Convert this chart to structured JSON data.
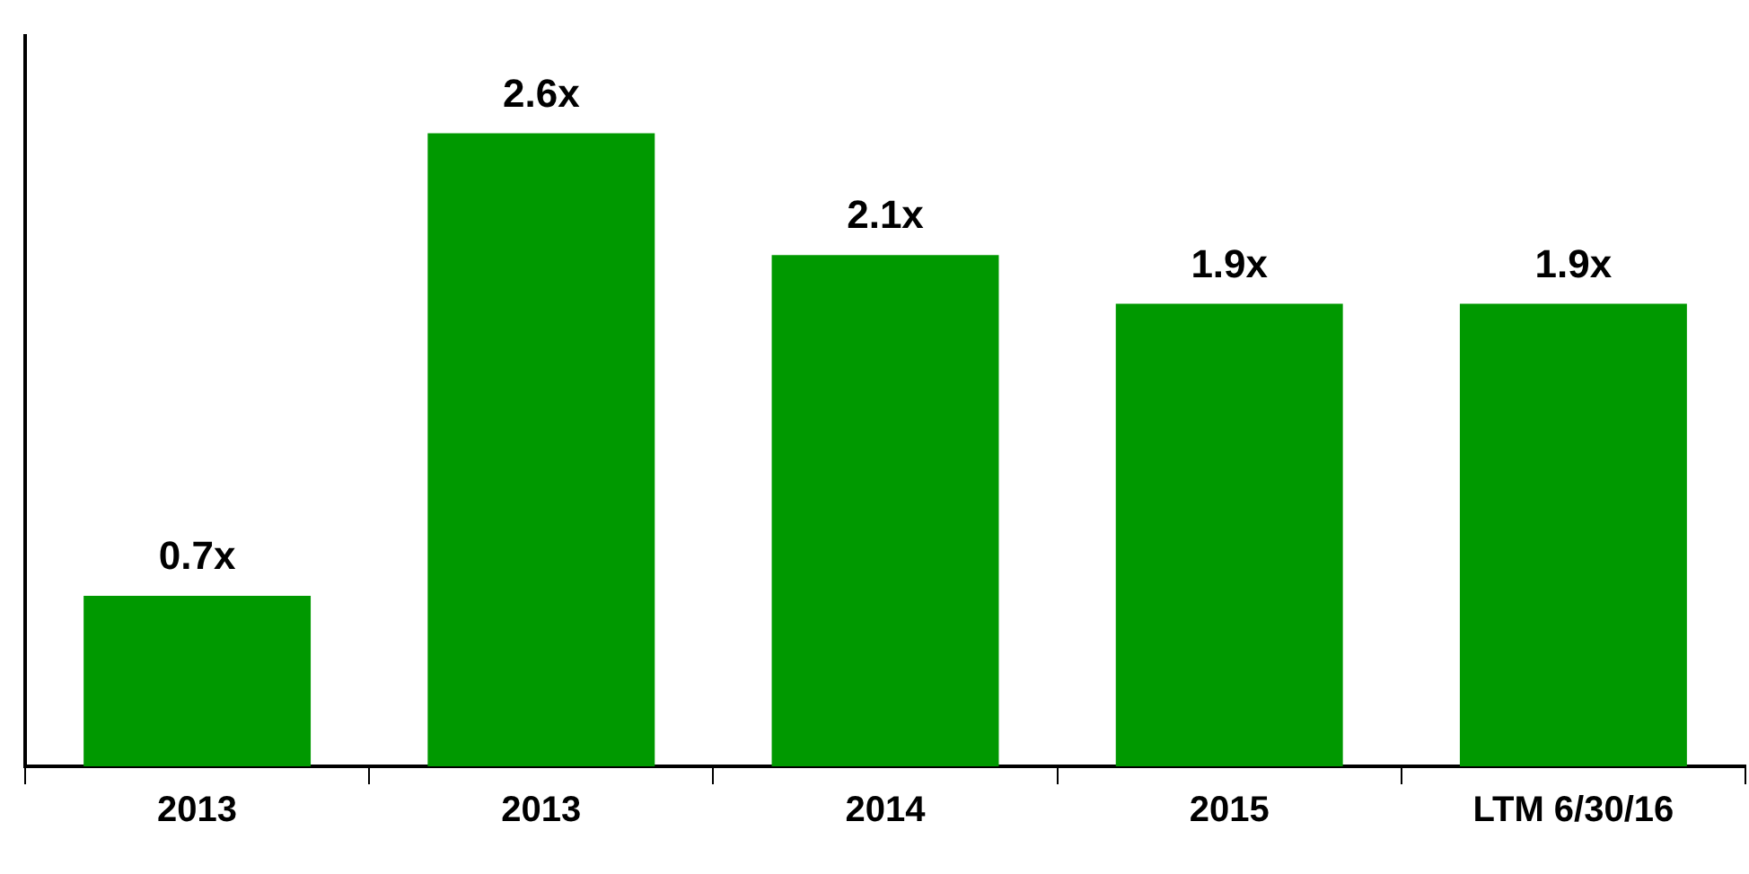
{
  "chart_data": {
    "type": "bar",
    "categories": [
      "2013",
      "2013",
      "2014",
      "2015",
      "LTM 6/30/16"
    ],
    "values": [
      0.7,
      2.6,
      2.1,
      1.9,
      1.9
    ],
    "value_labels": [
      "0.7x",
      "2.6x",
      "2.1x",
      "1.9x",
      "1.9x"
    ],
    "color": "#009900",
    "grid": false,
    "legend": false,
    "tick_labels": "x"
  }
}
